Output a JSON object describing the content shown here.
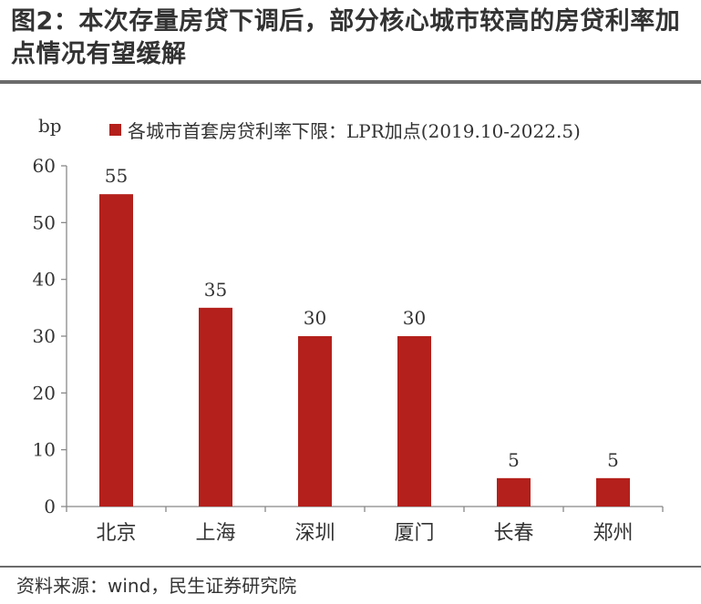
{
  "title": "图2：本次存量房贷下调后，部分核心城市较高的房贷利率加点情况有望缓解",
  "source": "资料来源：wind，民生证券研究院",
  "chart_data": {
    "type": "bar",
    "title": "",
    "ylabel": "bp",
    "xlabel": "",
    "categories": [
      "北京",
      "上海",
      "深圳",
      "厦门",
      "长春",
      "郑州"
    ],
    "series": [
      {
        "name": "各城市首套房贷利率下限：LPR加点(2019.10-2022.5)",
        "values": [
          55,
          35,
          30,
          30,
          5,
          5
        ]
      }
    ],
    "ylim": [
      0,
      60
    ],
    "yticks": [
      0,
      10,
      20,
      30,
      40,
      50,
      60
    ],
    "data_labels": true,
    "grid": false,
    "legend": "top",
    "bar_color": "#b4201b"
  }
}
